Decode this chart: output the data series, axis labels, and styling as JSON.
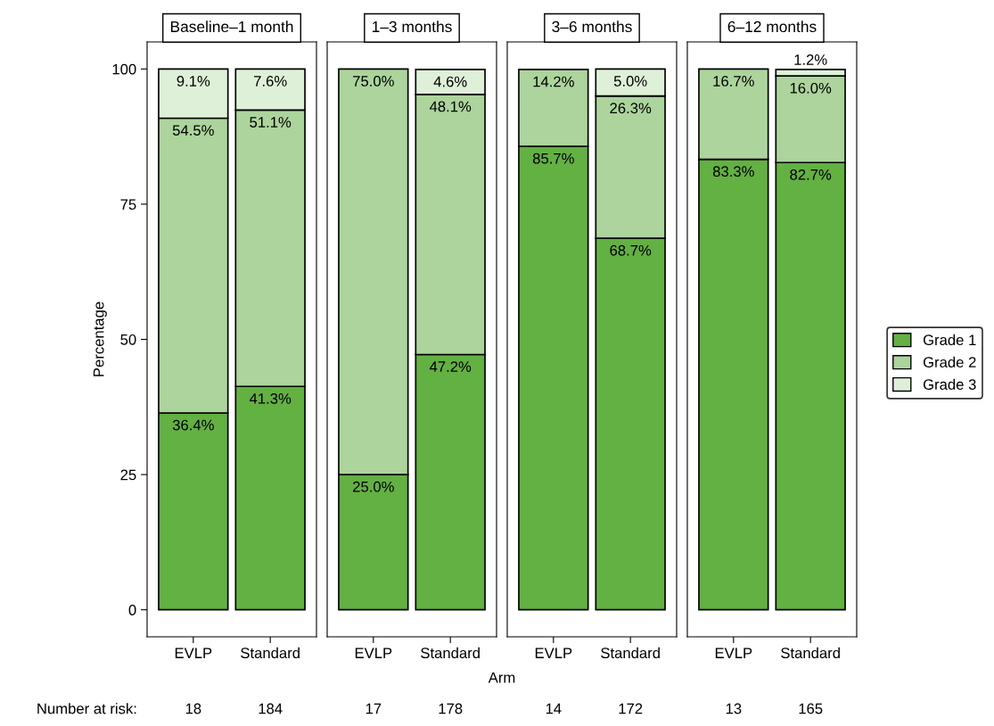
{
  "chart_data": [
    {
      "type": "bar",
      "title": "Baseline–1 month",
      "ylabel": "Percentage",
      "categories": [
        "EVLP",
        "Standard"
      ],
      "stacked": true,
      "ylim": [
        -5,
        105
      ],
      "yticks": [
        0,
        25,
        50,
        75,
        100
      ],
      "grid": false,
      "legend": "right",
      "series": [
        {
          "name": "Grade 1",
          "color": "#63b043",
          "values": [
            36.4,
            41.3
          ],
          "value_labels": [
            "36.4%",
            "41.3%"
          ]
        },
        {
          "name": "Grade 2",
          "color": "#acd49c",
          "values": [
            54.5,
            51.1
          ],
          "value_labels": [
            "54.5%",
            "51.1%"
          ]
        },
        {
          "name": "Grade 3",
          "color": "#dff0d8",
          "values": [
            9.1,
            7.6
          ],
          "value_labels": [
            "9.1%",
            "7.6%"
          ]
        }
      ],
      "annotations": [
        "Number at risk:",
        "18",
        "184"
      ]
    },
    {
      "type": "bar",
      "title": "1–3 months",
      "xlabel": "Arm",
      "categories": [
        "EVLP",
        "Standard"
      ],
      "stacked": true,
      "ylim": [
        -5,
        105
      ],
      "yticks": [
        0,
        25,
        50,
        75,
        100
      ],
      "grid": false,
      "tick_labels": "x",
      "series": [
        {
          "color": "#63b043",
          "values": [
            25.0,
            47.2
          ],
          "value_labels": [
            "25.0%",
            "47.2%"
          ]
        },
        {
          "color": "#acd49c",
          "values": [
            75.0,
            48.1
          ],
          "value_labels": [
            "75.0%",
            "48.1%"
          ]
        },
        {
          "color": "#dff0d8",
          "values": [
            null,
            4.6
          ],
          "value_labels": [
            null,
            "4.6%"
          ]
        }
      ],
      "annotations": [
        "17",
        "178"
      ]
    },
    {
      "type": "bar",
      "title": "3–6 months",
      "categories": [
        "EVLP",
        "Standard"
      ],
      "stacked": true,
      "ylim": [
        -5,
        105
      ],
      "yticks": [
        0,
        25,
        50,
        75,
        100
      ],
      "grid": false,
      "tick_labels": "x",
      "series": [
        {
          "color": "#63b043",
          "values": [
            85.7,
            68.7
          ],
          "value_labels": [
            "85.7%",
            "68.7%"
          ]
        },
        {
          "color": "#acd49c",
          "values": [
            14.2,
            26.3
          ],
          "value_labels": [
            "14.2%",
            "26.3%"
          ]
        },
        {
          "color": "#dff0d8",
          "values": [
            null,
            5.0
          ],
          "value_labels": [
            null,
            "5.0%"
          ]
        }
      ],
      "annotations": [
        "14",
        "172"
      ]
    },
    {
      "type": "bar",
      "title": "6–12 months",
      "categories": [
        "EVLP",
        "Standard"
      ],
      "stacked": true,
      "ylim": [
        -5,
        105
      ],
      "yticks": [
        0,
        25,
        50,
        75,
        100
      ],
      "grid": false,
      "tick_labels": "x",
      "series": [
        {
          "color": "#63b043",
          "values": [
            83.3,
            82.7
          ],
          "value_labels": [
            "83.3%",
            "82.7%"
          ]
        },
        {
          "color": "#acd49c",
          "values": [
            16.7,
            16.0
          ],
          "value_labels": [
            "16.7%",
            "16.0%"
          ]
        },
        {
          "color": "#dff0d8",
          "values": [
            null,
            1.2
          ],
          "value_labels": [
            null,
            "1.2%"
          ]
        }
      ],
      "annotations": [
        "13",
        "165"
      ]
    }
  ]
}
